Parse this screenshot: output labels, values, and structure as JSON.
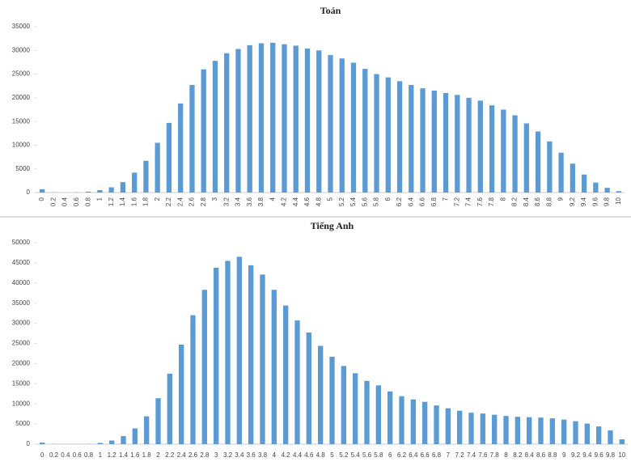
{
  "chart_data": [
    {
      "type": "bar",
      "title": "Toán",
      "categories": [
        "0",
        "0.2",
        "0.4",
        "0.6",
        "0.8",
        "1",
        "1.2",
        "1.4",
        "1.6",
        "1.8",
        "2",
        "2.2",
        "2.4",
        "2.6",
        "2.8",
        "3",
        "3.2",
        "3.4",
        "3.6",
        "3.8",
        "4",
        "4.2",
        "4.4",
        "4.6",
        "4.8",
        "5",
        "5.2",
        "5.4",
        "5.6",
        "5.8",
        "6",
        "6.2",
        "6.4",
        "6.6",
        "6.8",
        "7",
        "7.2",
        "7.4",
        "7.6",
        "7.8",
        "8",
        "8.2",
        "8.4",
        "8.6",
        "8.8",
        "9",
        "9.2",
        "9.4",
        "9.6",
        "9.8",
        "10"
      ],
      "values": [
        700,
        50,
        30,
        50,
        200,
        500,
        1100,
        2200,
        4200,
        6700,
        10500,
        14700,
        18800,
        22700,
        26000,
        27800,
        29400,
        30300,
        31100,
        31500,
        31600,
        31300,
        31000,
        30400,
        30000,
        29000,
        28300,
        27400,
        26100,
        25000,
        24300,
        23500,
        22700,
        22000,
        21500,
        21000,
        20600,
        20000,
        19400,
        18400,
        17500,
        16300,
        14600,
        12900,
        10800,
        8400,
        6100,
        3800,
        2100,
        1000,
        300
      ],
      "color": "#5b9bd5",
      "ylim": [
        0,
        35000
      ],
      "yticks": [
        0,
        5000,
        10000,
        15000,
        20000,
        25000,
        30000,
        35000
      ]
    },
    {
      "type": "bar",
      "title": "Tiếng Anh",
      "categories": [
        "0",
        "0.2",
        "0.4",
        "0.6",
        "0.8",
        "1",
        "1.2",
        "1.4",
        "1.6",
        "1.8",
        "2",
        "2.2",
        "2.4",
        "2.6",
        "2.8",
        "3",
        "3.2",
        "3.4",
        "3.6",
        "3.8",
        "4",
        "4.2",
        "4.4",
        "4.6",
        "4.8",
        "5",
        "5.2",
        "5.4",
        "5.6",
        "5.8",
        "6",
        "6.2",
        "6.4",
        "6.6",
        "6.8",
        "7",
        "7.2",
        "7.4",
        "7.6",
        "7.8",
        "8",
        "8.2",
        "8.4",
        "8.6",
        "8.8",
        "9",
        "9.2",
        "9.4",
        "9.6",
        "9.8",
        "10"
      ],
      "values": [
        400,
        50,
        30,
        30,
        50,
        300,
        900,
        2000,
        3900,
        6900,
        11400,
        17500,
        24700,
        32000,
        38300,
        43800,
        45500,
        46500,
        44400,
        42100,
        38300,
        34400,
        30700,
        27700,
        24400,
        21700,
        19400,
        17600,
        15700,
        14600,
        13100,
        11900,
        11100,
        10500,
        9600,
        8900,
        8300,
        7800,
        7600,
        7300,
        7000,
        6800,
        6700,
        6600,
        6400,
        6100,
        5700,
        5100,
        4400,
        3400,
        1200
      ],
      "color": "#5b9bd5",
      "ylim": [
        0,
        50000
      ],
      "yticks": [
        0,
        5000,
        10000,
        15000,
        20000,
        25000,
        30000,
        35000,
        40000,
        45000,
        50000
      ]
    }
  ]
}
